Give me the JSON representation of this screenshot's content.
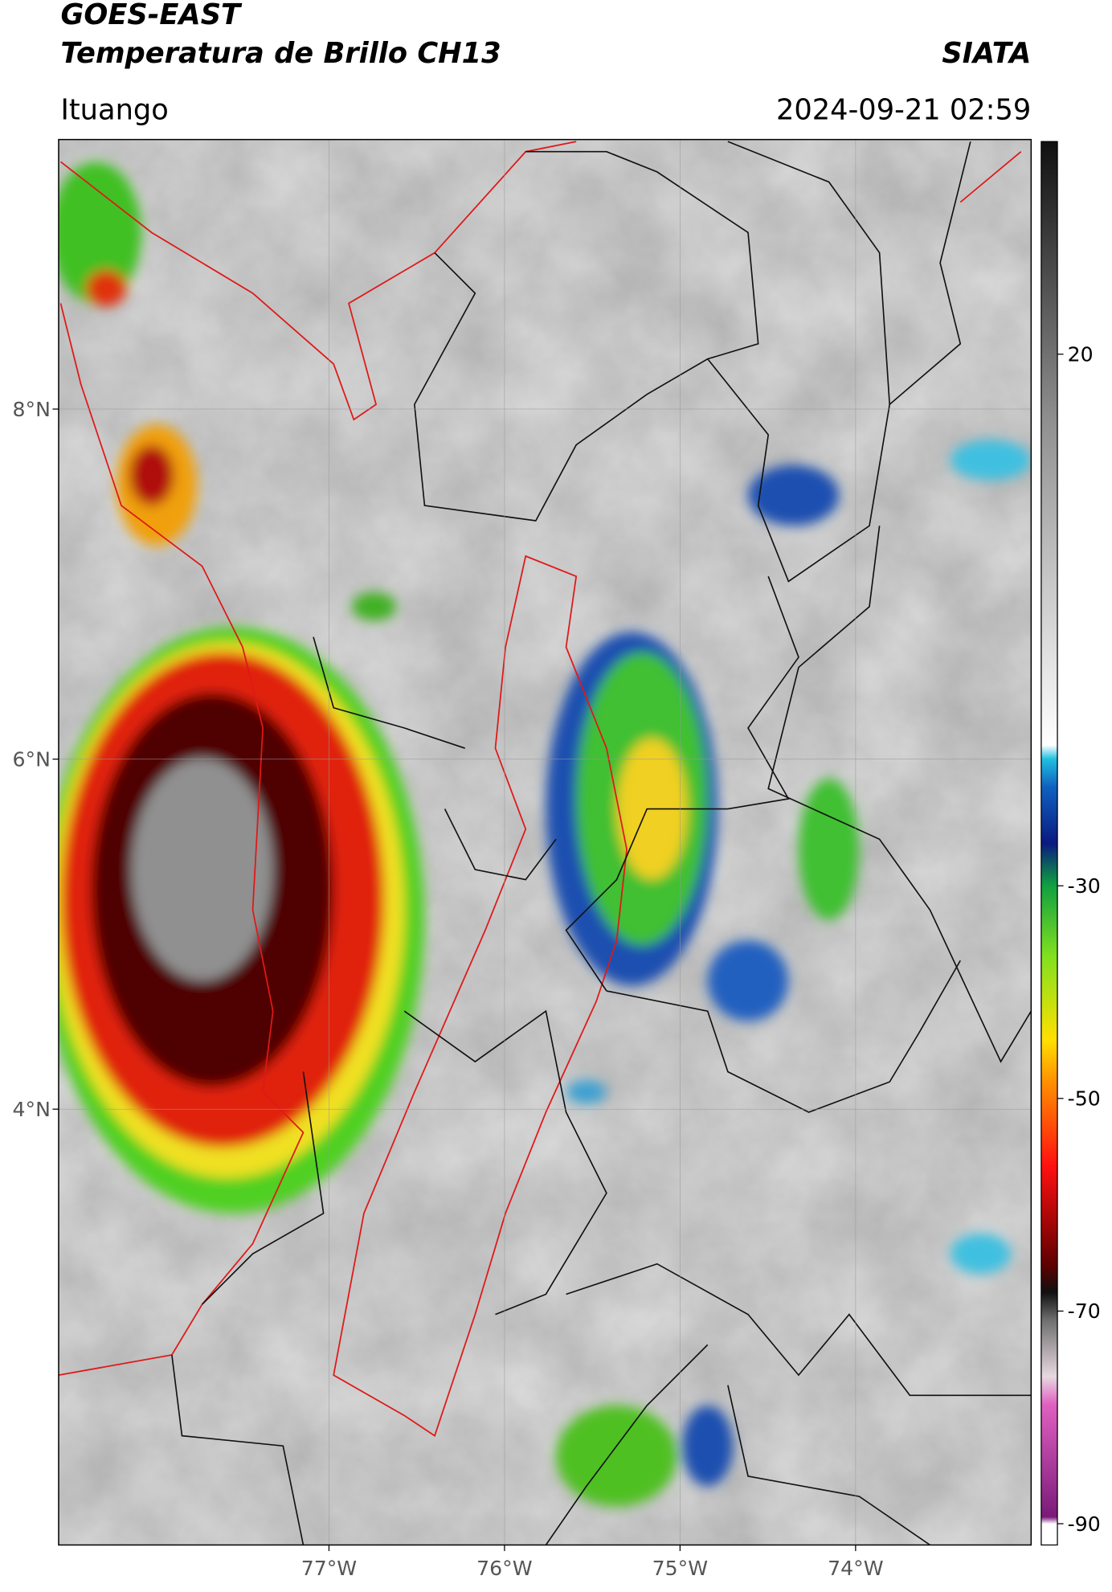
{
  "header": {
    "title": "GOES-EAST",
    "subtitle": "Temperatura de Brillo CH13",
    "agency": "SIATA",
    "location": "Ituango",
    "datetime": "2024-09-21 02:59"
  },
  "map": {
    "lonlim": [
      -78.54,
      -73.0
    ],
    "latlim": [
      1.51,
      9.54
    ],
    "lonticks": [
      {
        "value": -77,
        "label": "77°W"
      },
      {
        "value": -76,
        "label": "76°W"
      },
      {
        "value": -75,
        "label": "75°W"
      },
      {
        "value": -74,
        "label": "74°W"
      }
    ],
    "latticks": [
      {
        "value": 8,
        "label": "8°N"
      },
      {
        "value": 6,
        "label": "6°N"
      },
      {
        "value": 4,
        "label": "4°N"
      }
    ]
  },
  "colorbar": {
    "lim": [
      -92,
      40
    ],
    "ticks": [
      20,
      -30,
      -50,
      -70,
      -90
    ]
  }
}
